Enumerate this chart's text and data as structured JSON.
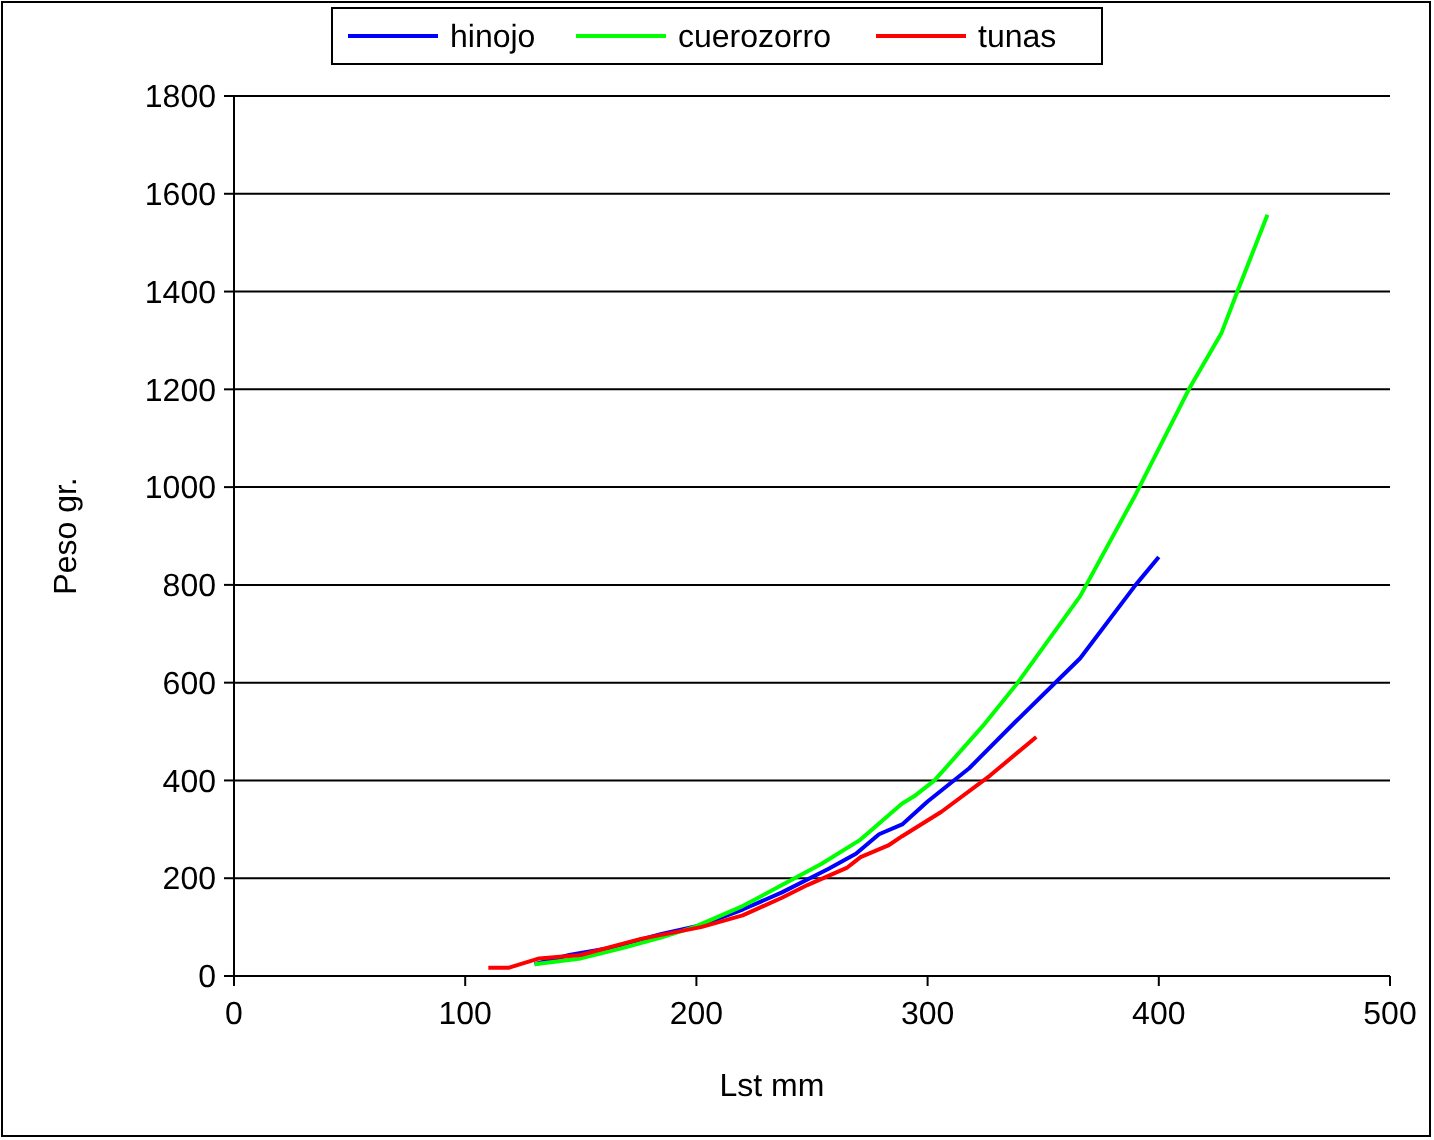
{
  "chart_data": {
    "type": "line",
    "xlabel": "Lst mm",
    "ylabel": "Peso gr.",
    "xlim": [
      0,
      500
    ],
    "xticks": [
      0,
      100,
      200,
      300,
      400,
      500
    ],
    "ylim": [
      0,
      1800
    ],
    "yticks": [
      0,
      200,
      400,
      600,
      800,
      1000,
      1200,
      1400,
      1600,
      1800
    ],
    "grid": "y",
    "legend": "top",
    "marker": "none",
    "line_style": "solid",
    "series": [
      {
        "name": "hinojo",
        "color": "#0000ff",
        "x": [
          130,
          145,
          162,
          185,
          202,
          220,
          237,
          257,
          269,
          279,
          289,
          300,
          318,
          338,
          366,
          390,
          400
        ],
        "values": [
          24,
          43,
          57,
          86,
          104,
          136,
          171,
          219,
          250,
          290,
          310,
          357,
          425,
          520,
          650,
          800,
          857
        ]
      },
      {
        "name": "cuerozorro",
        "color": "#00ff00",
        "x": [
          130,
          150,
          168,
          185,
          199,
          220,
          237,
          254,
          271,
          289,
          294,
          303,
          324,
          339,
          366,
          390,
          413,
          427,
          434,
          447
        ],
        "values": [
          24,
          36,
          57,
          79,
          100,
          143,
          186,
          229,
          279,
          353,
          367,
          400,
          512,
          600,
          777,
          985,
          1200,
          1314,
          1400,
          1557
        ]
      },
      {
        "name": "tunas",
        "color": "#ff0000",
        "x": [
          110,
          119,
          132,
          150,
          176,
          202,
          220,
          237,
          248,
          265,
          271,
          283,
          289,
          306,
          327,
          347
        ],
        "values": [
          17,
          17,
          36,
          43,
          76,
          100,
          124,
          160,
          186,
          221,
          243,
          267,
          286,
          336,
          410,
          489
        ]
      }
    ]
  }
}
